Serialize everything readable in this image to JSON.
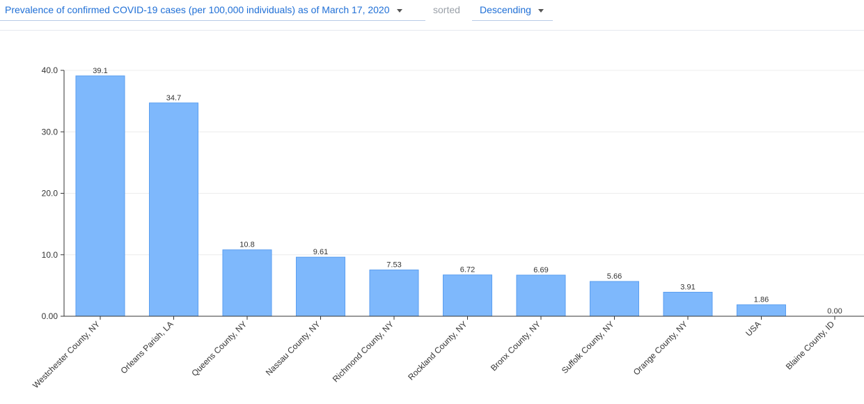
{
  "toolbar": {
    "metric_label": "Prevalence of confirmed COVID-19 cases (per 100,000 individuals) as of March 17, 2020",
    "sorted_text": "sorted",
    "order_label": "Descending",
    "metric_icon": "chevron-down-icon",
    "order_icon": "chevron-down-icon"
  },
  "chart_data": {
    "type": "bar",
    "categories": [
      "Westchester County, NY",
      "Orleans Parish, LA",
      "Queens County, NY",
      "Nassau County, NY",
      "Richmond County, NY",
      "Rockland County, NY",
      "Bronx County, NY",
      "Suffolk County, NY",
      "Orange County, NY",
      "USA",
      "Blaine County, ID"
    ],
    "values": [
      39.1,
      34.7,
      10.8,
      9.61,
      7.53,
      6.72,
      6.69,
      5.66,
      3.91,
      1.86,
      0.0
    ],
    "value_labels": [
      "39.1",
      "34.7",
      "10.8",
      "9.61",
      "7.53",
      "6.72",
      "6.69",
      "5.66",
      "3.91",
      "1.86",
      "0.00"
    ],
    "y_ticks": [
      0,
      10,
      20,
      30,
      40
    ],
    "y_tick_labels": [
      "0.00",
      "10.0",
      "20.0",
      "30.0",
      "40.0"
    ],
    "ylim": [
      0,
      40
    ],
    "grid": true,
    "colors": {
      "bar_fill": "#7eb8fc",
      "bar_stroke": "#5a9ef0",
      "grid": "#ececec",
      "axis": "#333333"
    }
  }
}
